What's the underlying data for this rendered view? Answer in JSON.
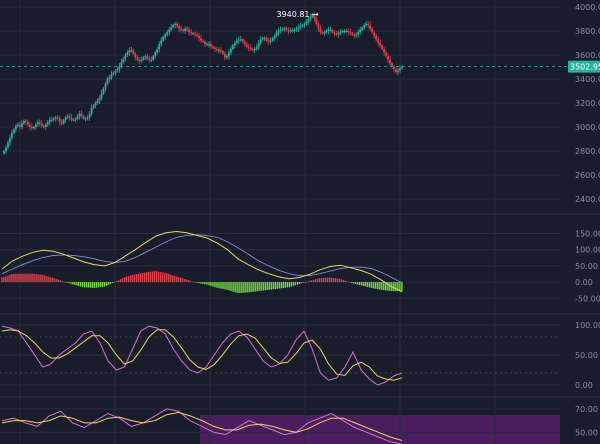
{
  "colors": {
    "background": "#181c2b",
    "grid": "#262b3d",
    "axis_text": "#8a8f9c",
    "up_candle": "#2bb39a",
    "down_candle": "#e0414d",
    "macd_line": "#e8d75a",
    "signal_line": "#7b8ed8",
    "hist_positive": "#e0414d",
    "hist_negative": "#72e03a",
    "k_line": "#e06dd1",
    "d_line": "#e8d75a",
    "oversold_band": "#4a1e5e",
    "price_tag": "#2bb39a",
    "dashed_line": "#2bb39a"
  },
  "chart_data": [
    {
      "type": "candlestick",
      "panel": "price",
      "ylim": [
        2400,
        4000
      ],
      "y_ticks": [
        "4000.00",
        "3800.00",
        "3600.00",
        "3400.00",
        "3200.00",
        "3000.00",
        "2800.00",
        "2600.00",
        "2400.00"
      ],
      "current_price_label": "3502.95",
      "current_price": 3502.95,
      "high_annotation": "3940.81 →",
      "high_value": 3940.81,
      "closes": [
        2800,
        2830,
        2870,
        2910,
        2950,
        2980,
        3010,
        3020,
        3000,
        3030,
        3050,
        3040,
        3020,
        3000,
        2990,
        3000,
        3020,
        3040,
        3030,
        3010,
        3000,
        3020,
        3040,
        3060,
        3060,
        3070,
        3080,
        3070,
        3040,
        3030,
        3060,
        3080,
        3090,
        3080,
        3060,
        3060,
        3070,
        3090,
        3110,
        3090,
        3070,
        3070,
        3080,
        3110,
        3160,
        3180,
        3200,
        3220,
        3240,
        3280,
        3320,
        3360,
        3400,
        3410,
        3440,
        3450,
        3470,
        3480,
        3510,
        3540,
        3570,
        3600,
        3620,
        3640,
        3640,
        3610,
        3580,
        3560,
        3550,
        3560,
        3580,
        3590,
        3570,
        3560,
        3560,
        3590,
        3620,
        3650,
        3690,
        3720,
        3750,
        3770,
        3790,
        3810,
        3830,
        3850,
        3860,
        3840,
        3820,
        3810,
        3800,
        3820,
        3810,
        3790,
        3780,
        3780,
        3770,
        3760,
        3740,
        3720,
        3710,
        3690,
        3690,
        3690,
        3670,
        3660,
        3650,
        3640,
        3640,
        3630,
        3610,
        3580,
        3590,
        3620,
        3650,
        3680,
        3700,
        3720,
        3730,
        3730,
        3710,
        3690,
        3670,
        3660,
        3650,
        3640,
        3650,
        3670,
        3700,
        3730,
        3740,
        3740,
        3720,
        3710,
        3720,
        3740,
        3760,
        3790,
        3800,
        3810,
        3820,
        3820,
        3810,
        3800,
        3800,
        3810,
        3810,
        3820,
        3830,
        3840,
        3850,
        3860,
        3880,
        3900,
        3920,
        3940,
        3900,
        3860,
        3820,
        3790,
        3780,
        3790,
        3800,
        3810,
        3810,
        3790,
        3780,
        3770,
        3780,
        3790,
        3800,
        3800,
        3800,
        3790,
        3780,
        3770,
        3760,
        3770,
        3790,
        3810,
        3830,
        3850,
        3860,
        3850,
        3820,
        3790,
        3760,
        3730,
        3700,
        3680,
        3650,
        3620,
        3590,
        3560,
        3530,
        3500,
        3480,
        3460,
        3470,
        3490,
        3503
      ]
    },
    {
      "type": "line+bar",
      "panel": "macd",
      "ylim": [
        -80,
        170
      ],
      "y_ticks": [
        "150.00",
        "100.00",
        "50.00",
        "0.00",
        "-50.00"
      ],
      "series": [
        {
          "role": "macd",
          "values": [
            40,
            65,
            80,
            92,
            98,
            95,
            86,
            74,
            62,
            54,
            50,
            60,
            80,
            100,
            122,
            142,
            152,
            156,
            152,
            144,
            136,
            120,
            100,
            72,
            54,
            38,
            26,
            16,
            10,
            14,
            24,
            38,
            48,
            52,
            44,
            36,
            24,
            6,
            -14,
            -30
          ]
        },
        {
          "role": "signal",
          "values": [
            26,
            40,
            54,
            66,
            76,
            82,
            84,
            82,
            78,
            72,
            64,
            60,
            64,
            76,
            92,
            108,
            124,
            138,
            144,
            146,
            144,
            138,
            124,
            106,
            86,
            66,
            50,
            36,
            26,
            20,
            20,
            26,
            34,
            42,
            46,
            46,
            42,
            30,
            14,
            -2
          ]
        },
        {
          "role": "histogram",
          "values": [
            14,
            25,
            26,
            26,
            22,
            13,
            2,
            -8,
            -16,
            -18,
            -14,
            0,
            16,
            24,
            30,
            34,
            28,
            18,
            8,
            -2,
            -8,
            -18,
            -24,
            -34,
            -32,
            -28,
            -24,
            -20,
            -16,
            -6,
            4,
            12,
            14,
            10,
            -2,
            -10,
            -18,
            -24,
            -28,
            -28
          ]
        }
      ]
    },
    {
      "type": "line",
      "panel": "stochastic_1",
      "ylim": [
        -10,
        110
      ],
      "y_ticks": [
        "100.00",
        "50.00",
        "0.00"
      ],
      "series": [
        {
          "role": "k",
          "values": [
            98,
            95,
            90,
            70,
            50,
            30,
            35,
            50,
            60,
            70,
            85,
            90,
            70,
            40,
            25,
            30,
            60,
            90,
            98,
            95,
            85,
            60,
            40,
            25,
            20,
            30,
            50,
            70,
            85,
            90,
            80,
            60,
            40,
            30,
            35,
            50,
            75,
            90,
            60,
            20,
            8,
            12,
            30,
            55,
            25,
            10,
            0,
            5,
            15,
            20
          ]
        },
        {
          "role": "d",
          "values": [
            90,
            92,
            90,
            82,
            70,
            55,
            45,
            45,
            52,
            62,
            72,
            82,
            82,
            70,
            50,
            35,
            40,
            58,
            80,
            92,
            92,
            80,
            62,
            42,
            30,
            26,
            34,
            50,
            68,
            82,
            85,
            78,
            62,
            45,
            36,
            38,
            52,
            70,
            75,
            60,
            35,
            18,
            16,
            32,
            38,
            30,
            15,
            10,
            8,
            12
          ]
        }
      ]
    },
    {
      "type": "line",
      "panel": "stochastic_2",
      "ylim": [
        40,
        75
      ],
      "y_ticks": [
        "70.00",
        "50.00"
      ],
      "series": [
        {
          "role": "k",
          "values": [
            60,
            62,
            58,
            55,
            64,
            68,
            58,
            54,
            60,
            66,
            62,
            55,
            58,
            64,
            70,
            68,
            60,
            55,
            50,
            48,
            54,
            60,
            56,
            52,
            48,
            50,
            58,
            62,
            66,
            60,
            54,
            50,
            46,
            42,
            40
          ]
        },
        {
          "role": "d",
          "values": [
            58,
            60,
            60,
            58,
            60,
            64,
            62,
            58,
            58,
            62,
            63,
            60,
            58,
            60,
            65,
            67,
            64,
            60,
            55,
            52,
            52,
            56,
            57,
            55,
            52,
            50,
            53,
            58,
            62,
            62,
            58,
            54,
            50,
            46,
            43
          ]
        }
      ]
    }
  ]
}
